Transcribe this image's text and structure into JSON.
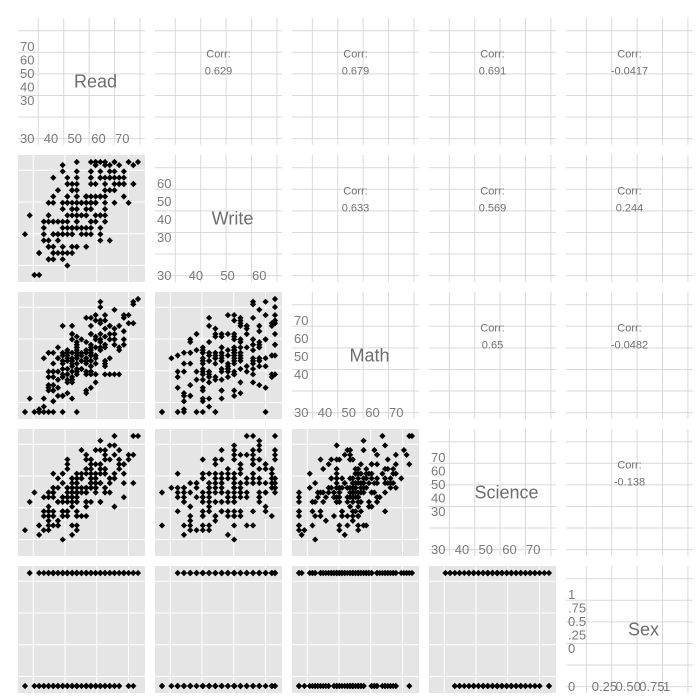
{
  "chart_data": {
    "type": "scatter",
    "variables": [
      "Read",
      "Write",
      "Math",
      "Science",
      "Sex"
    ],
    "correlation_label": "Corr:",
    "correlations": [
      {
        "row": "Read",
        "col": "Write",
        "value": "0.629"
      },
      {
        "row": "Read",
        "col": "Math",
        "value": "0.679"
      },
      {
        "row": "Read",
        "col": "Science",
        "value": "0.691"
      },
      {
        "row": "Read",
        "col": "Sex",
        "value": "-0.0417"
      },
      {
        "row": "Write",
        "col": "Math",
        "value": "0.633"
      },
      {
        "row": "Write",
        "col": "Science",
        "value": "0.569"
      },
      {
        "row": "Write",
        "col": "Sex",
        "value": "0.244"
      },
      {
        "row": "Math",
        "col": "Science",
        "value": "0.65"
      },
      {
        "row": "Math",
        "col": "Sex",
        "value": "-0.0482"
      },
      {
        "row": "Science",
        "col": "Sex",
        "value": "-0.138"
      }
    ],
    "diagonal_axes": [
      {
        "name": "Read",
        "x_ticks": [
          "30",
          "40",
          "50",
          "60",
          "70"
        ],
        "y_ticks": [
          "30",
          "40",
          "50",
          "60",
          "70"
        ]
      },
      {
        "name": "Write",
        "x_ticks": [
          "30",
          "40",
          "50",
          "60"
        ],
        "y_ticks": [
          "30",
          "40",
          "50",
          "60"
        ]
      },
      {
        "name": "Math",
        "x_ticks": [
          "30",
          "40",
          "50",
          "60",
          "70"
        ],
        "y_ticks": [
          "40",
          "50",
          "60",
          "70"
        ]
      },
      {
        "name": "Science",
        "x_ticks": [
          "30",
          "40",
          "50",
          "60",
          "70"
        ],
        "y_ticks": [
          "30",
          "40",
          "50",
          "60",
          "70"
        ]
      },
      {
        "name": "Sex",
        "x_ticks": [
          "0",
          "0.25",
          "0.50",
          "0.75",
          "1"
        ],
        "y_ticks": [
          "0",
          ".25",
          "0.5",
          ".75",
          "1"
        ]
      }
    ],
    "ranges": {
      "Read": [
        28,
        76
      ],
      "Write": [
        31,
        67
      ],
      "Math": [
        33,
        75
      ],
      "Science": [
        26,
        74
      ],
      "Sex": [
        0,
        1
      ]
    },
    "grid": true,
    "legend": "none"
  },
  "colors": {
    "panel_background": "#e5e5e5",
    "panel_grid": "#ffffff",
    "point": "#000000",
    "light_grid": "#d9d9d9",
    "tick_text": "#7a7a7a",
    "label_text": "#6e6e6e"
  }
}
